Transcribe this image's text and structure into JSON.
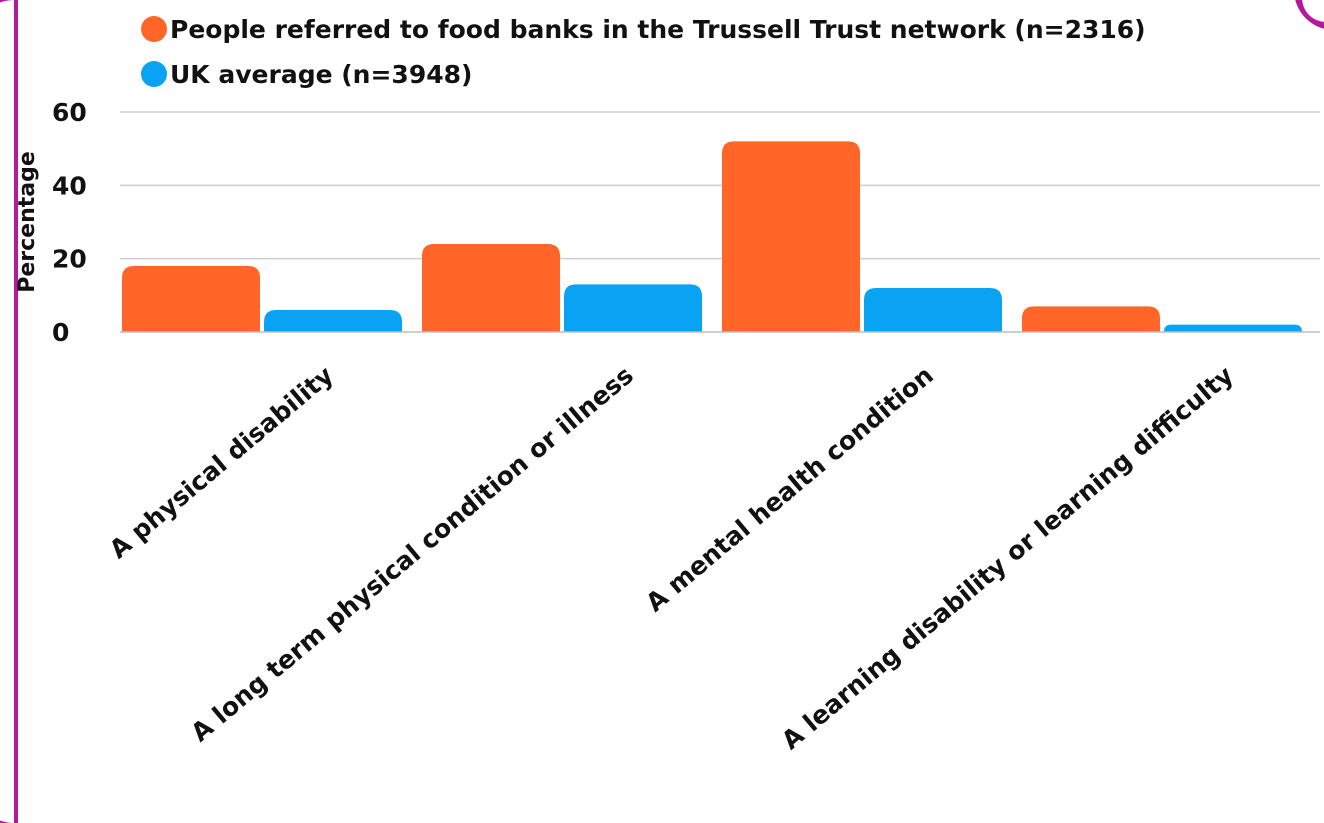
{
  "colors": {
    "series1": "#ff6628",
    "series2": "#0aa2f2",
    "frame": "#b5179e",
    "grid": "#cfcfcf"
  },
  "chart_data": {
    "type": "bar",
    "title": "",
    "xlabel": "",
    "ylabel": "Percentage",
    "ylim": [
      0,
      60
    ],
    "yticks": [
      0,
      20,
      40,
      60
    ],
    "grid": true,
    "legend_position": "top-left",
    "categories": [
      "A physical disability",
      "A long term physical condition or illness",
      "A mental health condition",
      "A learning disability or learning difficulty"
    ],
    "series": [
      {
        "name": "People referred to food banks in the Trussell Trust network (n=2316)",
        "values": [
          18,
          24,
          52,
          7
        ]
      },
      {
        "name": "UK average (n=3948)",
        "values": [
          6,
          13,
          12,
          2
        ]
      }
    ]
  }
}
